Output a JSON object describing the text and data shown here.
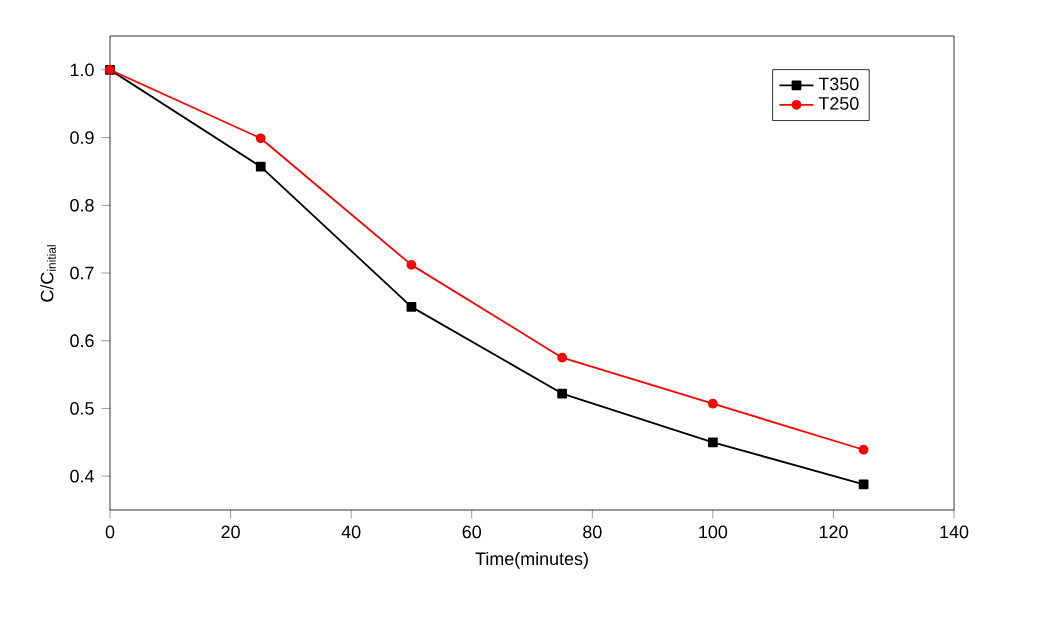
{
  "chart_data": {
    "type": "line",
    "xlabel": "Time(minutes)",
    "ylabel": "C/C$_{initial}$",
    "x": [
      0,
      25,
      50,
      75,
      100,
      125
    ],
    "series": [
      {
        "name": "T350",
        "color": "#000000",
        "marker": "square",
        "values": [
          1.0,
          0.857,
          0.65,
          0.522,
          0.45,
          0.388
        ]
      },
      {
        "name": "T250",
        "color": "#ff0000",
        "marker": "circle",
        "values": [
          1.0,
          0.899,
          0.712,
          0.575,
          0.507,
          0.439
        ]
      }
    ],
    "xlim": [
      0,
      140
    ],
    "xticks": [
      0,
      20,
      40,
      60,
      80,
      100,
      120,
      140
    ],
    "ylim": [
      0.35,
      1.05
    ],
    "yticks": [
      0.4,
      0.5,
      0.6,
      0.7,
      0.8,
      0.9,
      {
        "value": 1.0,
        "label": "1.0"
      }
    ],
    "legend": "top right",
    "line_style": "solid",
    "grid": false
  }
}
